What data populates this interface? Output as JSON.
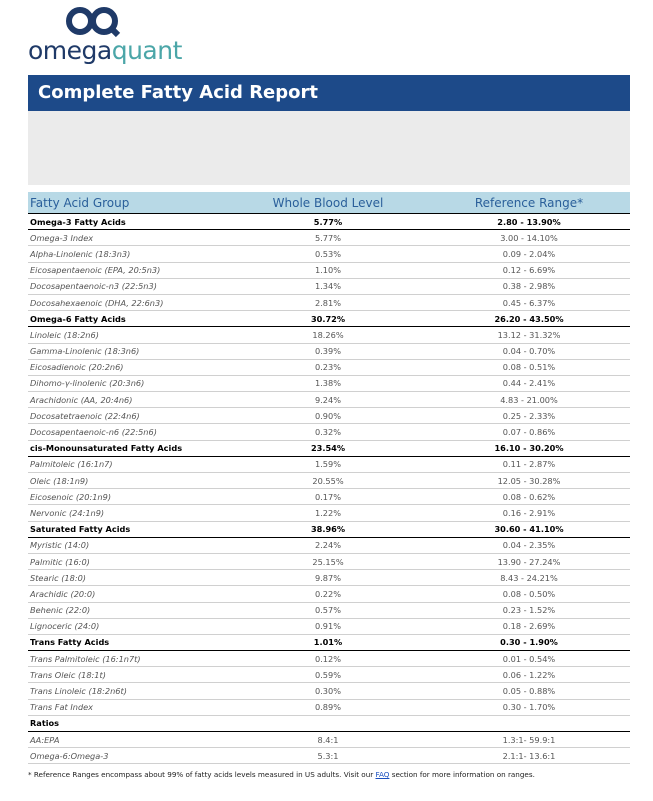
{
  "logo": {
    "omega": "omega",
    "quant": "quant"
  },
  "header": {
    "title": "Complete Fatty Acid Report"
  },
  "table": {
    "columns": [
      "Fatty Acid Group",
      "Whole Blood Level",
      "Reference Range*"
    ],
    "groups": [
      {
        "name": "Omega-3 Fatty Acids",
        "level": "5.77%",
        "range": "2.80 - 13.90%",
        "rows": [
          [
            "Omega-3 Index",
            "5.77%",
            "3.00 - 14.10%"
          ],
          [
            "Alpha-Linolenic (18:3n3)",
            "0.53%",
            "0.09 - 2.04%"
          ],
          [
            "Eicosapentaenoic (EPA, 20:5n3)",
            "1.10%",
            "0.12 - 6.69%"
          ],
          [
            "Docosapentaenoic-n3 (22:5n3)",
            "1.34%",
            "0.38 - 2.98%"
          ],
          [
            "Docosahexaenoic (DHA, 22:6n3)",
            "2.81%",
            "0.45 - 6.37%"
          ]
        ]
      },
      {
        "name": "Omega-6 Fatty Acids",
        "level": "30.72%",
        "range": "26.20 - 43.50%",
        "rows": [
          [
            "Linoleic (18:2n6)",
            "18.26%",
            "13.12 - 31.32%"
          ],
          [
            "Gamma-Linolenic (18:3n6)",
            "0.39%",
            "0.04 - 0.70%"
          ],
          [
            "Eicosadienoic (20:2n6)",
            "0.23%",
            "0.08 - 0.51%"
          ],
          [
            "Dihomo-γ-linolenic (20:3n6)",
            "1.38%",
            "0.44 - 2.41%"
          ],
          [
            "Arachidonic (AA, 20:4n6)",
            "9.24%",
            "4.83 - 21.00%"
          ],
          [
            "Docosatetraenoic (22:4n6)",
            "0.90%",
            "0.25 - 2.33%"
          ],
          [
            "Docosapentaenoic-n6 (22:5n6)",
            "0.32%",
            "0.07 - 0.86%"
          ]
        ]
      },
      {
        "name": "cis-Monounsaturated Fatty Acids",
        "level": "23.54%",
        "range": "16.10 - 30.20%",
        "rows": [
          [
            "Palmitoleic (16:1n7)",
            "1.59%",
            "0.11 - 2.87%"
          ],
          [
            "Oleic (18:1n9)",
            "20.55%",
            "12.05 - 30.28%"
          ],
          [
            "Eicosenoic (20:1n9)",
            "0.17%",
            "0.08 - 0.62%"
          ],
          [
            "Nervonic (24:1n9)",
            "1.22%",
            "0.16 - 2.91%"
          ]
        ]
      },
      {
        "name": "Saturated Fatty Acids",
        "level": "38.96%",
        "range": "30.60 - 41.10%",
        "rows": [
          [
            "Myristic (14:0)",
            "2.24%",
            "0.04 - 2.35%"
          ],
          [
            "Palmitic (16:0)",
            "25.15%",
            "13.90 - 27.24%"
          ],
          [
            "Stearic (18:0)",
            "9.87%",
            "8.43 - 24.21%"
          ],
          [
            "Arachidic (20:0)",
            "0.22%",
            "0.08 - 0.50%"
          ],
          [
            "Behenic (22:0)",
            "0.57%",
            "0.23 - 1.52%"
          ],
          [
            "Lignoceric (24:0)",
            "0.91%",
            "0.18 - 2.69%"
          ]
        ]
      },
      {
        "name": "Trans Fatty Acids",
        "level": "1.01%",
        "range": "0.30 - 1.90%",
        "rows": [
          [
            "Trans Palmitoleic (16:1n7t)",
            "0.12%",
            "0.01 - 0.54%"
          ],
          [
            "Trans Oleic (18:1t)",
            "0.59%",
            "0.06 - 1.22%"
          ],
          [
            "Trans Linoleic (18:2n6t)",
            "0.30%",
            "0.05 - 0.88%"
          ],
          [
            "Trans Fat Index",
            "0.89%",
            "0.30 - 1.70%"
          ]
        ]
      },
      {
        "name": "Ratios",
        "rows": [
          [
            "AA:EPA",
            "8.4:1",
            "1.3:1- 59.9:1"
          ],
          [
            "Omega-6:Omega-3",
            "5.3:1",
            "2.1:1- 13.6:1"
          ]
        ]
      }
    ]
  },
  "footnote": {
    "before": "* Reference Ranges encompass about 99% of fatty acids levels measured in US adults. Visit our ",
    "link": "FAQ",
    "after": " section for more information on ranges."
  }
}
